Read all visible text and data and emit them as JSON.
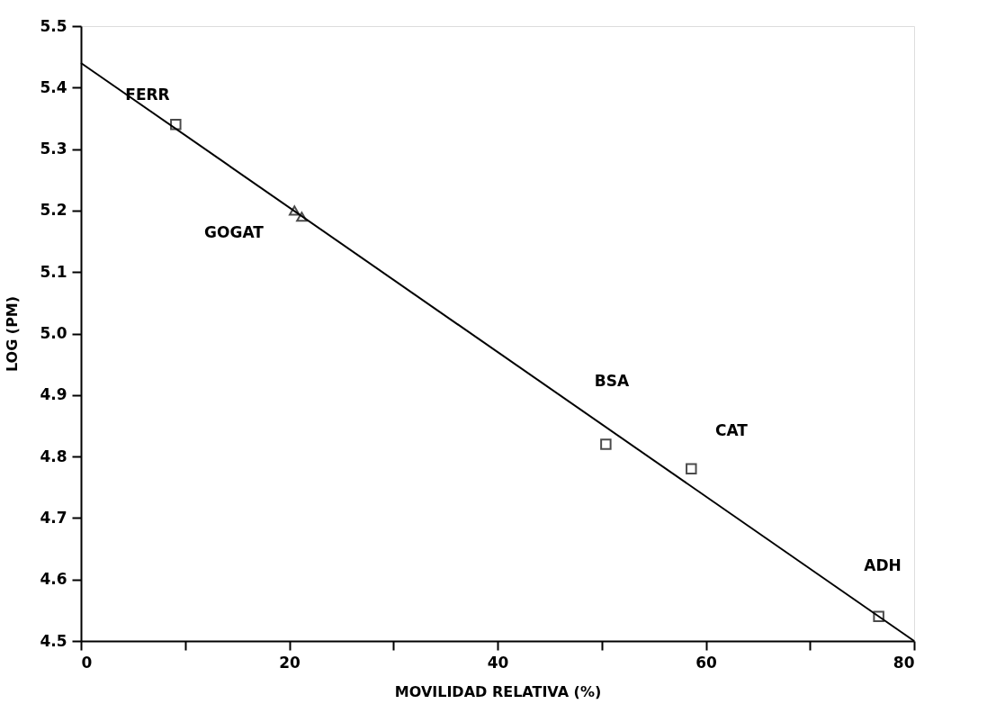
{
  "chart_data": {
    "type": "scatter",
    "xlabel": "MOVILIDAD RELATIVA (%)",
    "ylabel": "LOG (PM)",
    "xlim": [
      0,
      80
    ],
    "ylim": [
      4.5,
      5.5
    ],
    "xticks": [
      0,
      {
        "value": 10,
        "label": null
      },
      20,
      {
        "value": 30,
        "label": null
      },
      40,
      {
        "value": 50,
        "label": null
      },
      60,
      {
        "value": 70,
        "label": null
      },
      80
    ],
    "yticks": [
      {
        "value": 4.5,
        "label": "4.5"
      },
      {
        "value": 4.6,
        "label": "4.6"
      },
      {
        "value": 4.7,
        "label": "4.7"
      },
      {
        "value": 4.8,
        "label": "4.8"
      },
      {
        "value": 4.9,
        "label": "4.9"
      },
      {
        "value": 5.0,
        "label": "5.0"
      },
      {
        "value": 5.1,
        "label": "5.1"
      },
      {
        "value": 5.2,
        "label": "5.2"
      },
      {
        "value": 5.3,
        "label": "5.3"
      },
      {
        "value": 5.4,
        "label": "5.4"
      },
      {
        "value": 5.5,
        "label": "5.5"
      }
    ],
    "grid": false,
    "series": [
      {
        "marker": "square",
        "color": "#000000",
        "x": [
          9.1,
          50.4,
          58.6,
          76.6
        ],
        "values": [
          5.34,
          4.82,
          4.78,
          4.54
        ]
      },
      {
        "marker": "triangle",
        "color": "#000000",
        "x": [
          20.5,
          21.2
        ],
        "values": [
          5.2,
          5.19
        ]
      },
      {
        "type": "line",
        "marker": "none",
        "line_style": "solid",
        "color": "#000000",
        "x": [
          0,
          80
        ],
        "values": [
          5.44,
          4.5
        ]
      }
    ],
    "annotations": [
      "FERR",
      "GOGAT",
      "BSA",
      "CAT",
      "ADH"
    ]
  }
}
